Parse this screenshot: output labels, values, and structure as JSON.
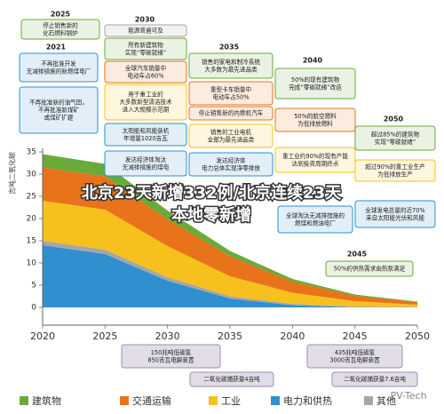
{
  "chart_data": {
    "type": "area",
    "ylabel": "吉吨二氧化碳",
    "x": [
      2020,
      2025,
      2030,
      2035,
      2040,
      2045,
      2050
    ],
    "xlim": [
      2020,
      2050
    ],
    "xticks": [
      2020,
      2025,
      2030,
      2035,
      2040,
      2045,
      2050
    ],
    "ylim": [
      -4,
      35
    ],
    "yticks": [
      0,
      5,
      10,
      15,
      20,
      25,
      30,
      35
    ],
    "stacked": true,
    "series": [
      {
        "name": "电力和供热",
        "color": "#2f8fcf",
        "values": [
          14,
          12,
          6,
          2,
          0.5,
          0,
          0
        ]
      },
      {
        "name": "其他",
        "color": "#a6a6a6",
        "values": [
          1,
          1,
          0.8,
          0.5,
          0.3,
          0.2,
          0.1
        ]
      },
      {
        "name": "工业",
        "color": "#f7c11d",
        "values": [
          9,
          9,
          7,
          4.5,
          2.5,
          1.2,
          0.5
        ]
      },
      {
        "name": "交通运输",
        "color": "#e8731a",
        "values": [
          7.5,
          7.5,
          6,
          4.5,
          2.5,
          1.2,
          0.6
        ]
      },
      {
        "name": "建筑物",
        "color": "#6aaa3a",
        "values": [
          3,
          2.8,
          2,
          1.2,
          0.6,
          0.3,
          0.1
        ]
      }
    ],
    "annotations": [
      {
        "year": "2025",
        "notes": [
          {
            "color": "#6aaa3a",
            "lines": [
              "停止销售新的",
              "化石燃料锅炉"
            ]
          }
        ]
      },
      {
        "year": "2021",
        "notes": [
          {
            "color": "#2f8fcf",
            "lines": [
              "不再批准开发",
              "无减排措施的新燃煤电厂"
            ]
          },
          {
            "color": "#2f8fcf",
            "lines": [
              "不再批准新的油气田，",
              "不再批准新煤矿",
              "或煤矿扩建"
            ]
          }
        ]
      },
      {
        "year": "2030",
        "notes": [
          {
            "color": "#a6a6a6",
            "lines": [
              "能源普遍可及"
            ]
          },
          {
            "color": "#6aaa3a",
            "lines": [
              "所有新建筑物",
              "实现“零碳就绪”"
            ]
          },
          {
            "color": "#e8731a",
            "lines": [
              "全球汽车销量中",
              "电动车占60%"
            ]
          },
          {
            "color": "#f7c11d",
            "lines": [
              "用于重工业的",
              "大多数新型清洁技术",
              "进入大规模示范期"
            ]
          },
          {
            "color": "#2f8fcf",
            "lines": [
              "太阳能和风能装机",
              "年增量1020吉瓦"
            ]
          },
          {
            "color": "#2f8fcf",
            "lines": [
              "发达经济体淘汰",
              "无减排措施的煤电"
            ]
          }
        ]
      },
      {
        "year": "2035",
        "notes": [
          {
            "color": "#6aaa3a",
            "lines": [
              "销售的家电和制冷系统",
              "大多数为最先进品类"
            ]
          },
          {
            "color": "#e8731a",
            "lines": [
              "重型卡车销量中",
              "电动车占50%"
            ]
          },
          {
            "color": "#e8731a",
            "lines": [
              "停止销售新的内燃机汽车"
            ]
          },
          {
            "color": "#f7c11d",
            "lines": [
              "销售的工业电机",
              "全部为最先进品类"
            ]
          },
          {
            "color": "#2f8fcf",
            "lines": [
              "发达经济体",
              "电力总体实现净零排放"
            ]
          }
        ]
      },
      {
        "year": "2040",
        "notes": [
          {
            "color": "#6aaa3a",
            "lines": [
              "50%的现有建筑物",
              "完成“零碳就绪”改造"
            ]
          },
          {
            "color": "#e8731a",
            "lines": [
              "50%的航空燃料",
              "为低排放燃料"
            ]
          },
          {
            "color": "#f7c11d",
            "lines": [
              "重工业约90%的现有产能",
              "达到投资周期终点"
            ]
          },
          {
            "color": "#2f8fcf",
            "lines": [
              "全球淘汰无减排措施的",
              "燃煤和燃油电厂"
            ]
          }
        ]
      },
      {
        "year": "2045",
        "notes": [
          {
            "color": "#6aaa3a",
            "lines": [
              "50%的供热需求由热泵满足"
            ]
          }
        ]
      },
      {
        "year": "2050",
        "notes": [
          {
            "color": "#6aaa3a",
            "lines": [
              "超过85%的建筑物",
              "实现“零碳就绪”"
            ]
          },
          {
            "color": "#f7c11d",
            "lines": [
              "超过90%的重工业生产",
              "为低排放生产"
            ]
          },
          {
            "color": "#2f8fcf",
            "lines": [
              "全球发电总量的近70%",
              "来自太阳能光伏和风能"
            ]
          }
        ]
      }
    ],
    "bottom_notes": [
      {
        "lines": [
          "150兆吨低碳氢",
          "850吉瓦电解装置"
        ]
      },
      {
        "lines": [
          "二氧化碳捕获量4吉吨"
        ]
      },
      {
        "lines": [
          "435兆吨低碳氢",
          "3000吉瓦电解装置"
        ]
      },
      {
        "lines": [
          "二氧化碳捕获量7.6吉吨"
        ]
      }
    ],
    "headline": [
      "北京23天新增332例/北京连续23天",
      "本地零新增"
    ],
    "watermark": "PV-Tech"
  }
}
